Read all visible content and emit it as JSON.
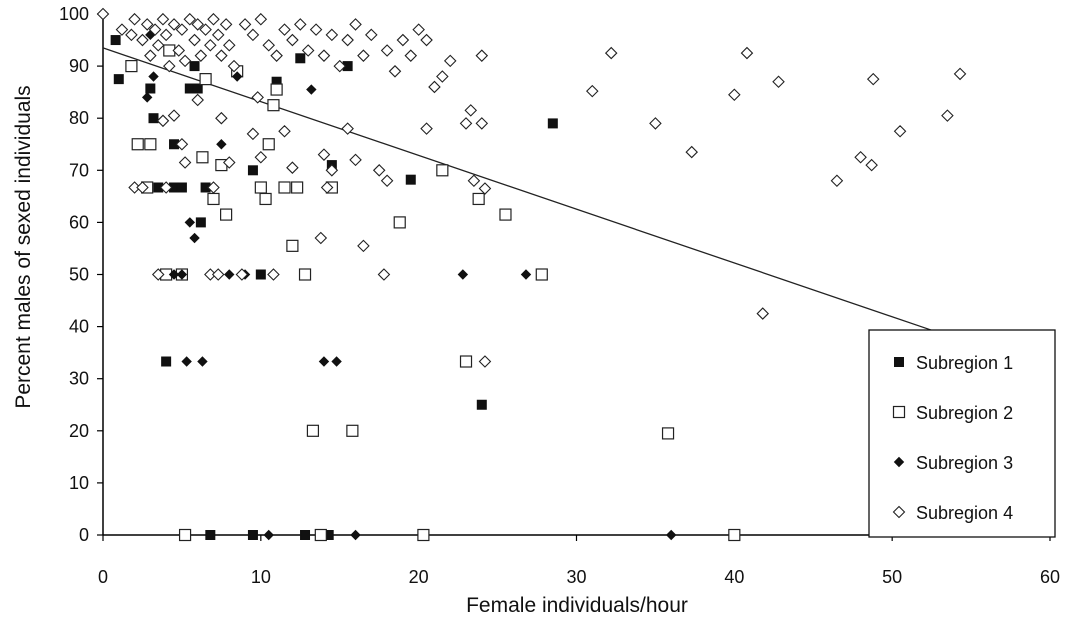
{
  "chart_data": {
    "type": "scatter",
    "title": "",
    "xlabel": "Female individuals/hour",
    "ylabel": "Percent males of sexed individuals",
    "xlim": [
      0,
      60
    ],
    "ylim": [
      0,
      100
    ],
    "x_ticks": [
      "0",
      "10",
      "20",
      "30",
      "40",
      "50",
      "60"
    ],
    "y_ticks": [
      "0",
      "10",
      "20",
      "30",
      "40",
      "50",
      "60",
      "70",
      "80",
      "90",
      "100"
    ],
    "grid": false,
    "legend_position": "right",
    "trendline": {
      "x": [
        0,
        52.8
      ],
      "y": [
        93.5,
        39
      ]
    },
    "series": [
      {
        "name": "Subregion 1",
        "marker": "filled-square",
        "points": [
          [
            0.8,
            95
          ],
          [
            1.0,
            87.5
          ],
          [
            3.0,
            85.7
          ],
          [
            3.2,
            80
          ],
          [
            3.5,
            66.7
          ],
          [
            4.5,
            75
          ],
          [
            4.5,
            66.7
          ],
          [
            5.0,
            66.7
          ],
          [
            5.5,
            85.7
          ],
          [
            5.8,
            90
          ],
          [
            6.0,
            85.7
          ],
          [
            6.2,
            60
          ],
          [
            6.5,
            66.7
          ],
          [
            9.5,
            70
          ],
          [
            10.0,
            50
          ],
          [
            11.0,
            87
          ],
          [
            12.5,
            91.5
          ],
          [
            14.5,
            71
          ],
          [
            15.5,
            90
          ],
          [
            19.5,
            68.2
          ],
          [
            28.5,
            79
          ],
          [
            24.0,
            25
          ],
          [
            4.0,
            33.3
          ],
          [
            6.8,
            0
          ],
          [
            9.5,
            0
          ],
          [
            12.8,
            0
          ],
          [
            14.3,
            0
          ]
        ]
      },
      {
        "name": "Subregion 2",
        "marker": "open-square",
        "points": [
          [
            1.8,
            90
          ],
          [
            2.2,
            75
          ],
          [
            2.8,
            66.7
          ],
          [
            3.0,
            75
          ],
          [
            4.0,
            50
          ],
          [
            4.2,
            93
          ],
          [
            5.0,
            50
          ],
          [
            6.5,
            87.5
          ],
          [
            6.3,
            72.5
          ],
          [
            7.0,
            64.5
          ],
          [
            7.5,
            71
          ],
          [
            7.8,
            61.5
          ],
          [
            8.5,
            89
          ],
          [
            10.0,
            66.7
          ],
          [
            10.3,
            64.5
          ],
          [
            10.5,
            75
          ],
          [
            10.8,
            82.5
          ],
          [
            11.0,
            85.5
          ],
          [
            11.5,
            66.7
          ],
          [
            12.3,
            66.7
          ],
          [
            12.0,
            55.5
          ],
          [
            12.8,
            50
          ],
          [
            13.3,
            20
          ],
          [
            14.5,
            66.7
          ],
          [
            15.8,
            20
          ],
          [
            18.8,
            60
          ],
          [
            21.5,
            70
          ],
          [
            23.0,
            33.3
          ],
          [
            23.8,
            64.5
          ],
          [
            25.5,
            61.5
          ],
          [
            27.8,
            50
          ],
          [
            35.8,
            19.5
          ],
          [
            5.2,
            0
          ],
          [
            13.8,
            0
          ],
          [
            20.3,
            0
          ],
          [
            40.0,
            0
          ]
        ]
      },
      {
        "name": "Subregion 3",
        "marker": "filled-diamond",
        "points": [
          [
            2.8,
            84
          ],
          [
            3.0,
            96
          ],
          [
            3.2,
            88
          ],
          [
            3.5,
            50
          ],
          [
            4.5,
            50
          ],
          [
            5.0,
            50
          ],
          [
            5.3,
            33.3
          ],
          [
            5.5,
            60
          ],
          [
            5.8,
            57
          ],
          [
            6.3,
            33.3
          ],
          [
            7.5,
            75
          ],
          [
            8.0,
            50
          ],
          [
            8.5,
            88
          ],
          [
            9.0,
            50
          ],
          [
            13.2,
            85.5
          ],
          [
            14.0,
            33.3
          ],
          [
            14.8,
            33.3
          ],
          [
            22.8,
            50
          ],
          [
            26.8,
            50
          ],
          [
            36.0,
            0
          ],
          [
            10.5,
            0
          ],
          [
            16.0,
            0
          ]
        ]
      },
      {
        "name": "Subregion 4",
        "marker": "open-diamond",
        "points": [
          [
            0.0,
            100
          ],
          [
            1.2,
            97
          ],
          [
            1.8,
            96
          ],
          [
            2.0,
            99
          ],
          [
            2.5,
            95
          ],
          [
            2.8,
            98
          ],
          [
            3.0,
            92
          ],
          [
            3.3,
            97
          ],
          [
            3.5,
            94
          ],
          [
            3.8,
            99
          ],
          [
            4.0,
            96
          ],
          [
            4.2,
            90
          ],
          [
            4.5,
            98
          ],
          [
            4.8,
            93
          ],
          [
            5.0,
            97
          ],
          [
            5.2,
            91
          ],
          [
            5.5,
            99
          ],
          [
            5.8,
            95
          ],
          [
            6.0,
            98
          ],
          [
            6.2,
            92
          ],
          [
            6.5,
            97
          ],
          [
            6.8,
            94
          ],
          [
            7.0,
            99
          ],
          [
            7.3,
            96
          ],
          [
            7.5,
            92
          ],
          [
            7.8,
            98
          ],
          [
            8.0,
            94
          ],
          [
            8.3,
            90
          ],
          [
            9.0,
            98
          ],
          [
            9.5,
            96
          ],
          [
            10.0,
            99
          ],
          [
            10.5,
            94
          ],
          [
            11.0,
            92
          ],
          [
            11.5,
            97
          ],
          [
            12.0,
            95
          ],
          [
            12.5,
            98
          ],
          [
            13.0,
            93
          ],
          [
            13.5,
            97
          ],
          [
            14.0,
            92
          ],
          [
            14.5,
            96
          ],
          [
            15.0,
            90
          ],
          [
            15.5,
            95
          ],
          [
            16.0,
            98
          ],
          [
            16.5,
            92
          ],
          [
            17.0,
            96
          ],
          [
            18.0,
            93
          ],
          [
            18.5,
            89
          ],
          [
            19.0,
            95
          ],
          [
            19.5,
            92
          ],
          [
            20.0,
            97
          ],
          [
            20.5,
            95
          ],
          [
            21.0,
            86
          ],
          [
            21.5,
            88
          ],
          [
            22.0,
            91
          ],
          [
            23.0,
            79
          ],
          [
            23.3,
            81.5
          ],
          [
            24.0,
            79
          ],
          [
            24.0,
            92
          ],
          [
            3.8,
            79.5
          ],
          [
            4.5,
            80.5
          ],
          [
            5.0,
            75
          ],
          [
            5.2,
            71.5
          ],
          [
            6.0,
            83.5
          ],
          [
            7.5,
            80
          ],
          [
            8.0,
            71.5
          ],
          [
            9.5,
            77
          ],
          [
            9.8,
            84
          ],
          [
            10.0,
            72.5
          ],
          [
            11.5,
            77.5
          ],
          [
            12.0,
            70.5
          ],
          [
            14.0,
            73
          ],
          [
            14.5,
            70
          ],
          [
            15.5,
            78
          ],
          [
            16.0,
            72
          ],
          [
            17.5,
            70
          ],
          [
            18.0,
            68
          ],
          [
            20.5,
            78
          ],
          [
            23.5,
            68
          ],
          [
            24.2,
            66.5
          ],
          [
            2.0,
            66.7
          ],
          [
            2.5,
            66.7
          ],
          [
            4.0,
            66.7
          ],
          [
            7.0,
            66.7
          ],
          [
            14.2,
            66.7
          ],
          [
            3.5,
            50
          ],
          [
            6.8,
            50
          ],
          [
            7.3,
            50
          ],
          [
            8.8,
            50
          ],
          [
            10.8,
            50
          ],
          [
            17.8,
            50
          ],
          [
            13.8,
            57
          ],
          [
            16.5,
            55.5
          ],
          [
            24.2,
            33.3
          ],
          [
            31.0,
            85.2
          ],
          [
            32.2,
            92.5
          ],
          [
            35.0,
            79
          ],
          [
            37.3,
            73.5
          ],
          [
            40.0,
            84.5
          ],
          [
            40.8,
            92.5
          ],
          [
            42.8,
            87
          ],
          [
            46.5,
            68
          ],
          [
            48.0,
            72.5
          ],
          [
            48.7,
            71
          ],
          [
            48.8,
            87.5
          ],
          [
            50.5,
            77.5
          ],
          [
            53.5,
            80.5
          ],
          [
            54.3,
            88.5
          ],
          [
            41.8,
            42.5
          ]
        ]
      }
    ]
  }
}
